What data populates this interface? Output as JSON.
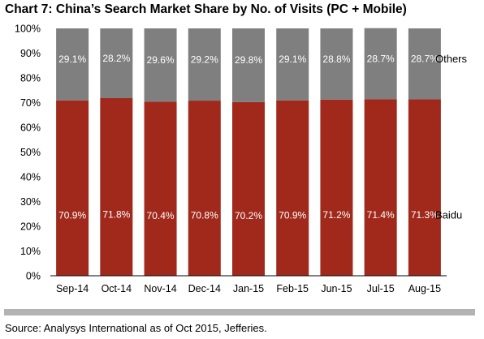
{
  "chart_data": {
    "type": "bar",
    "stacked": true,
    "title": "Chart 7: China’s Search Market Share by No. of Visits (PC + Mobile)",
    "categories": [
      "Sep-14",
      "Oct-14",
      "Nov-14",
      "Dec-14",
      "Jan-15",
      "Feb-15",
      "Jun-15",
      "Jul-15",
      "Aug-15"
    ],
    "series": [
      {
        "name": "Baidu",
        "color": "#a0291c",
        "values": [
          70.9,
          71.8,
          70.4,
          70.8,
          70.2,
          70.9,
          71.2,
          71.4,
          71.3
        ],
        "labels": [
          "70.9%",
          "71.8%",
          "70.4%",
          "70.8%",
          "70.2%",
          "70.9%",
          "71.2%",
          "71.4%",
          "71.3%"
        ]
      },
      {
        "name": "Others",
        "color": "#7f7f7f",
        "values": [
          29.1,
          28.2,
          29.6,
          29.2,
          29.8,
          29.1,
          28.8,
          28.7,
          28.7
        ],
        "labels": [
          "29.1%",
          "28.2%",
          "29.6%",
          "29.2%",
          "29.8%",
          "29.1%",
          "28.8%",
          "28.7%",
          "28.7%"
        ]
      }
    ],
    "ylim": [
      0,
      100
    ],
    "yticks": [
      "0%",
      "10%",
      "20%",
      "30%",
      "40%",
      "50%",
      "60%",
      "70%",
      "80%",
      "90%",
      "100%"
    ],
    "legend": "series names at right end of each band",
    "grid": false
  },
  "source_note": "Source: Analysys International as of Oct 2015, Jefferies."
}
